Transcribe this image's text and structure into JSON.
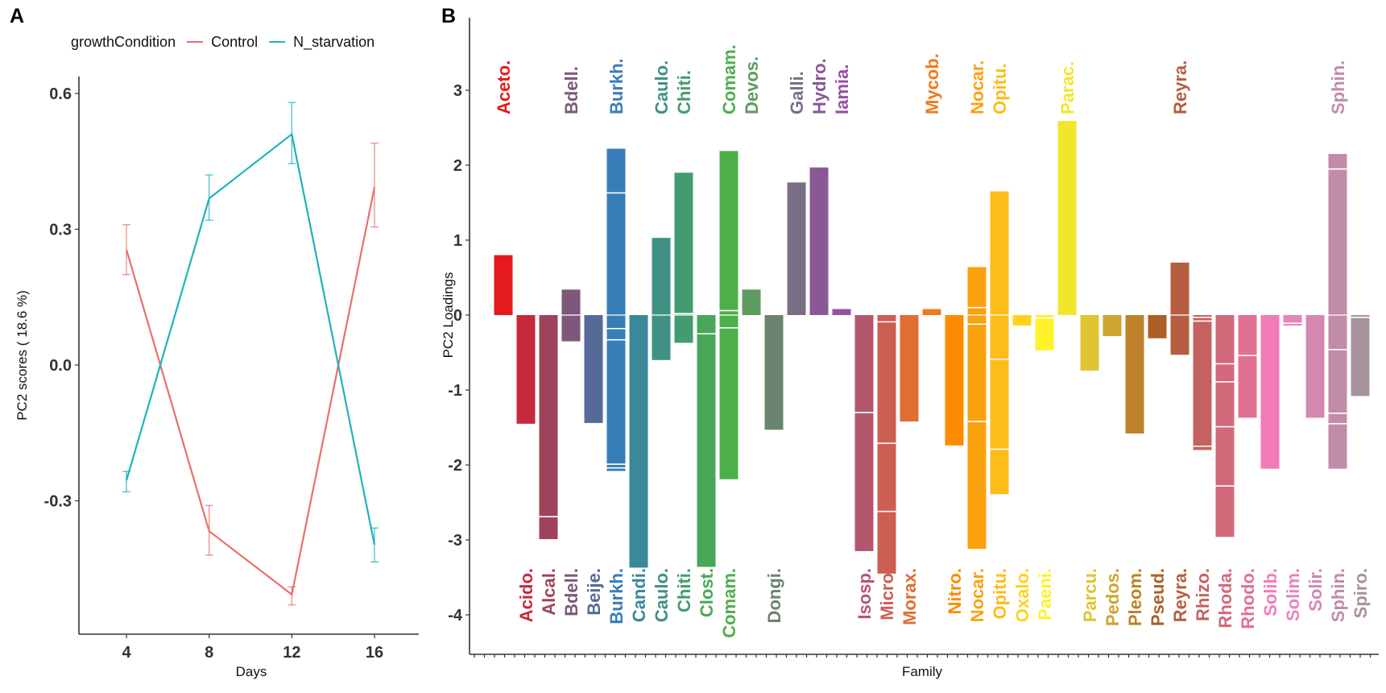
{
  "chart_data": [
    {
      "panel": "A",
      "type": "line",
      "title": "",
      "xlabel": "Days",
      "ylabel": "PC2 scores ( 18.6 %)",
      "x": [
        4,
        8,
        12,
        16
      ],
      "xticks": [
        "4",
        "8",
        "12",
        "16"
      ],
      "yticks": [
        "0.6",
        "0.3",
        "0.0",
        "-0.3"
      ],
      "ytick_values": [
        0.6,
        0.3,
        0.0,
        -0.3
      ],
      "xlim": [
        2,
        18
      ],
      "ylim": [
        -0.68,
        0.67
      ],
      "grid": false,
      "legend": {
        "title": "growthCondition",
        "placement": "top"
      },
      "series": [
        {
          "name": "Control",
          "color": "#E8706A",
          "values": [
            0.255,
            -0.367,
            -0.507,
            0.393
          ],
          "err_high": [
            0.31,
            -0.31,
            -0.49,
            0.49
          ],
          "err_low": [
            0.2,
            -0.42,
            -0.53,
            0.305
          ]
        },
        {
          "name": "N_starvation",
          "color": "#1EB3BB",
          "values": [
            -0.255,
            0.368,
            0.51,
            -0.397
          ],
          "err_high": [
            -0.235,
            0.42,
            0.58,
            -0.36
          ],
          "err_low": [
            -0.28,
            0.32,
            0.445,
            -0.435
          ]
        }
      ]
    },
    {
      "panel": "B",
      "type": "bar",
      "title": "",
      "xlabel": "Family",
      "ylabel": "PC2 Loadings",
      "yticks": [
        "3",
        "2",
        "1",
        "0",
        "-1",
        "-2",
        "-3",
        "-4"
      ],
      "ytick_values": [
        3,
        2,
        1,
        0,
        -1,
        -2,
        -3,
        -4
      ],
      "ylim": [
        -4.7,
        3.95
      ],
      "grid": false,
      "stacked": true,
      "categories": [
        "Aceto.",
        "Acido.",
        "Alcal.",
        "Bdell.",
        "Beije.",
        "Burkh.",
        "Candi.",
        "Caulo.",
        "Chiti.",
        "Clost.",
        "Comam.",
        "Devos.",
        "Dongi.",
        "Galli.",
        "Hydro.",
        "Iamia.",
        "Isosp.",
        "Micro.",
        "Morax.",
        "Mycob.",
        "Nitro.",
        "Nocar.",
        "Opitu.",
        "Oxalo.",
        "Paeni.",
        "Parac.",
        "Parcu.",
        "Pedos.",
        "Pleom.",
        "Pseud.",
        "Reyra.",
        "Rhizo.",
        "Rhoda.",
        "Rhodo.",
        "Solib.",
        "Solim.",
        "Solir.",
        "Sphin.",
        "Spiro."
      ],
      "bars": [
        {
          "name": "Aceto.",
          "color": "#E41A1C",
          "pos": 0.8,
          "neg": 0,
          "pos_breaks": [],
          "neg_breaks": []
        },
        {
          "name": "Acido.",
          "color": "#C62A3C",
          "pos": 0,
          "neg": -1.45,
          "pos_breaks": [],
          "neg_breaks": []
        },
        {
          "name": "Alcal.",
          "color": "#A0435A",
          "pos": 0,
          "neg": -2.99,
          "pos_breaks": [],
          "neg_breaks": [
            -2.69
          ]
        },
        {
          "name": "Bdell.",
          "color": "#7D587A",
          "pos": 0.34,
          "neg": -0.35,
          "pos_breaks": [],
          "neg_breaks": []
        },
        {
          "name": "Beije.",
          "color": "#566A9A",
          "pos": 0,
          "neg": -1.44,
          "pos_breaks": [],
          "neg_breaks": []
        },
        {
          "name": "Burkh.",
          "color": "#377EB8",
          "pos": 2.22,
          "neg": -2.08,
          "pos_breaks": [
            1.63
          ],
          "neg_breaks": [
            -0.18,
            -0.33,
            -1.99,
            -2.04
          ]
        },
        {
          "name": "Candi.",
          "color": "#3A889A",
          "pos": 0,
          "neg": -3.37,
          "pos_breaks": [],
          "neg_breaks": []
        },
        {
          "name": "Caulo.",
          "color": "#3F9184",
          "pos": 1.03,
          "neg": -0.6,
          "pos_breaks": [],
          "neg_breaks": []
        },
        {
          "name": "Chiti.",
          "color": "#449B70",
          "pos": 1.9,
          "neg": -0.37,
          "pos_breaks": [
            0.02
          ],
          "neg_breaks": []
        },
        {
          "name": "Clost.",
          "color": "#4AA75A",
          "pos": 0,
          "neg": -3.36,
          "pos_breaks": [],
          "neg_breaks": [
            -0.25
          ]
        },
        {
          "name": "Comam.",
          "color": "#4DAF4A",
          "pos": 2.19,
          "neg": -2.19,
          "pos_breaks": [
            0.06
          ],
          "neg_breaks": [
            -0.17
          ]
        },
        {
          "name": "Devos.",
          "color": "#5F9A5F",
          "pos": 0.34,
          "neg": 0,
          "pos_breaks": [],
          "neg_breaks": []
        },
        {
          "name": "Dongi.",
          "color": "#6B8470",
          "pos": 0,
          "neg": -1.53,
          "pos_breaks": [],
          "neg_breaks": []
        },
        {
          "name": "Galli.",
          "color": "#7A6E84",
          "pos": 1.77,
          "neg": 0,
          "pos_breaks": [],
          "neg_breaks": []
        },
        {
          "name": "Hydro.",
          "color": "#8B5896",
          "pos": 1.97,
          "neg": 0,
          "pos_breaks": [],
          "neg_breaks": []
        },
        {
          "name": "Iamia.",
          "color": "#984EA3",
          "pos": 0.08,
          "neg": 0,
          "pos_breaks": [],
          "neg_breaks": []
        },
        {
          "name": "Isosp.",
          "color": "#B5566F",
          "pos": 0,
          "neg": -3.15,
          "pos_breaks": [],
          "neg_breaks": [
            -1.3
          ]
        },
        {
          "name": "Micro.",
          "color": "#CC5F52",
          "pos": 0,
          "neg": -3.45,
          "pos_breaks": [],
          "neg_breaks": [
            -0.09,
            -1.71,
            -2.62
          ]
        },
        {
          "name": "Morax.",
          "color": "#E06D34",
          "pos": 0,
          "neg": -1.42,
          "pos_breaks": [],
          "neg_breaks": []
        },
        {
          "name": "Mycob.",
          "color": "#F07A1A",
          "pos": 0.08,
          "neg": 0,
          "pos_breaks": [],
          "neg_breaks": []
        },
        {
          "name": "Nitro.",
          "color": "#FF8A00",
          "pos": 0,
          "neg": -1.74,
          "pos_breaks": [],
          "neg_breaks": []
        },
        {
          "name": "Nocar.",
          "color": "#FBA10E",
          "pos": 0.64,
          "neg": -3.12,
          "pos_breaks": [
            0.1
          ],
          "neg_breaks": [
            -0.12,
            -1.42
          ]
        },
        {
          "name": "Opitu.",
          "color": "#FDBC1A",
          "pos": 1.65,
          "neg": -2.39,
          "pos_breaks": [],
          "neg_breaks": [
            -0.59,
            -1.79
          ]
        },
        {
          "name": "Oxalo.",
          "color": "#FFD21E",
          "pos": 0,
          "neg": -0.14,
          "pos_breaks": [],
          "neg_breaks": []
        },
        {
          "name": "Paeni.",
          "color": "#FFF12A",
          "pos": 0,
          "neg": -0.47,
          "pos_breaks": [],
          "neg_breaks": [
            -0.04
          ]
        },
        {
          "name": "Parac.",
          "color": "#F2E62C",
          "pos": 2.59,
          "neg": 0,
          "pos_breaks": [],
          "neg_breaks": []
        },
        {
          "name": "Parcu.",
          "color": "#E0C432",
          "pos": 0,
          "neg": -0.74,
          "pos_breaks": [],
          "neg_breaks": []
        },
        {
          "name": "Pedos.",
          "color": "#CFA32F",
          "pos": 0,
          "neg": -0.28,
          "pos_breaks": [],
          "neg_breaks": []
        },
        {
          "name": "Pleom.",
          "color": "#BE822A",
          "pos": 0,
          "neg": -1.58,
          "pos_breaks": [],
          "neg_breaks": []
        },
        {
          "name": "Pseud.",
          "color": "#AD6026",
          "pos": 0,
          "neg": -0.31,
          "pos_breaks": [],
          "neg_breaks": []
        },
        {
          "name": "Reyra.",
          "color": "#B55E40",
          "pos": 0.7,
          "neg": -0.53,
          "pos_breaks": [],
          "neg_breaks": []
        },
        {
          "name": "Rhizo.",
          "color": "#C4625F",
          "pos": 0,
          "neg": -1.8,
          "pos_breaks": [],
          "neg_breaks": [
            -0.03,
            -0.08,
            -1.75
          ]
        },
        {
          "name": "Rhoda.",
          "color": "#D2697A",
          "pos": 0,
          "neg": -2.96,
          "pos_breaks": [],
          "neg_breaks": [
            -0.65,
            -0.89,
            -1.49,
            -2.28
          ]
        },
        {
          "name": "Rhodo.",
          "color": "#E07192",
          "pos": 0,
          "neg": -1.37,
          "pos_breaks": [],
          "neg_breaks": [
            -0.54
          ]
        },
        {
          "name": "Solib.",
          "color": "#F27CB7",
          "pos": 0,
          "neg": -2.05,
          "pos_breaks": [],
          "neg_breaks": []
        },
        {
          "name": "Solim.",
          "color": "#E684BE",
          "pos": 0,
          "neg": -0.14,
          "pos_breaks": [],
          "neg_breaks": [
            -0.11
          ]
        },
        {
          "name": "Solir.",
          "color": "#D388B2",
          "pos": 0,
          "neg": -1.37,
          "pos_breaks": [],
          "neg_breaks": []
        },
        {
          "name": "Sphin.",
          "color": "#C08CA8",
          "pos": 2.15,
          "neg": -2.05,
          "pos_breaks": [
            1.95
          ],
          "neg_breaks": [
            -0.46,
            -1.31,
            -1.45
          ]
        },
        {
          "name": "Spiro.",
          "color": "#A8929E",
          "pos": 0,
          "neg": -1.08,
          "pos_breaks": [],
          "neg_breaks": [
            -0.03
          ]
        }
      ],
      "top_labels": [
        "Aceto.",
        "Bdell.",
        "Burkh.",
        "Caulo.",
        "Chiti.",
        "Comam.",
        "Devos.",
        "Galli.",
        "Hydro.",
        "Iamia.",
        "Mycob.",
        "Nocar.",
        "Opitu.",
        "Parac.",
        "Reyra.",
        "Sphin."
      ],
      "bottom_labels": [
        "Acido.",
        "Alcal.",
        "Bdell.",
        "Beije.",
        "Burkh.",
        "Candi.",
        "Caulo.",
        "Chiti.",
        "Clost.",
        "Comam.",
        "Dongi.",
        "Isosp.",
        "Micro.",
        "Morax.",
        "Nitro.",
        "Nocar.",
        "Opitu.",
        "Oxalo.",
        "Paeni.",
        "Parcu.",
        "Pedos.",
        "Pleom.",
        "Pseud.",
        "Reyra.",
        "Rhizo.",
        "Rhoda.",
        "Rhodo.",
        "Solib.",
        "Solim.",
        "Solir.",
        "Sphin.",
        "Spiro."
      ]
    }
  ],
  "panels": {
    "a_letter": "A",
    "b_letter": "B"
  }
}
